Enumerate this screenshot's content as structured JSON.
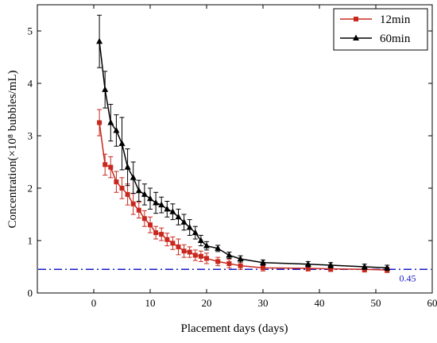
{
  "chart_data": {
    "type": "line",
    "xlabel": "Placement days (days)",
    "ylabel": "Concentration(×10⁸ bubbles/mL)",
    "xlim": [
      -10,
      60
    ],
    "ylim": [
      0,
      5.5
    ],
    "xticks": [
      "0",
      "10",
      "20",
      "30",
      "40",
      "50",
      "60"
    ],
    "yticks": [
      "0",
      "1",
      "2",
      "3",
      "4",
      "5"
    ],
    "legend_position": "top-right",
    "series": [
      {
        "name": "12min",
        "color": "#c8281e",
        "marker": "square",
        "x": [
          1,
          2,
          3,
          4,
          5,
          6,
          7,
          8,
          9,
          10,
          11,
          12,
          13,
          14,
          15,
          16,
          17,
          18,
          19,
          20,
          22,
          24,
          26,
          30,
          38,
          42,
          48,
          52
        ],
        "y": [
          3.25,
          2.45,
          2.4,
          2.12,
          2.0,
          1.88,
          1.7,
          1.58,
          1.42,
          1.3,
          1.15,
          1.12,
          1.02,
          0.95,
          0.88,
          0.8,
          0.78,
          0.72,
          0.7,
          0.66,
          0.6,
          0.56,
          0.52,
          0.48,
          0.47,
          0.46,
          0.45,
          0.44
        ],
        "err": [
          0.25,
          0.2,
          0.2,
          0.2,
          0.2,
          0.2,
          0.2,
          0.15,
          0.15,
          0.15,
          0.12,
          0.12,
          0.12,
          0.12,
          0.15,
          0.12,
          0.1,
          0.1,
          0.1,
          0.1,
          0.08,
          0.08,
          0.07,
          0.06,
          0.05,
          0.05,
          0.05,
          0.05
        ]
      },
      {
        "name": "60min",
        "color": "#000000",
        "marker": "triangle",
        "x": [
          1,
          2,
          3,
          4,
          5,
          6,
          7,
          8,
          9,
          10,
          11,
          12,
          13,
          14,
          15,
          16,
          17,
          18,
          19,
          20,
          22,
          24,
          26,
          30,
          38,
          42,
          48,
          52
        ],
        "y": [
          4.8,
          3.88,
          3.25,
          3.1,
          2.85,
          2.4,
          2.2,
          1.95,
          1.88,
          1.8,
          1.72,
          1.68,
          1.6,
          1.55,
          1.45,
          1.35,
          1.25,
          1.15,
          1.0,
          0.9,
          0.85,
          0.72,
          0.65,
          0.58,
          0.55,
          0.53,
          0.5,
          0.48
        ],
        "err": [
          0.5,
          0.35,
          0.35,
          0.3,
          0.5,
          0.35,
          0.3,
          0.2,
          0.2,
          0.2,
          0.2,
          0.15,
          0.15,
          0.15,
          0.15,
          0.15,
          0.15,
          0.12,
          0.1,
          0.08,
          0.06,
          0.06,
          0.06,
          0.05,
          0.05,
          0.05,
          0.05,
          0.05
        ]
      }
    ],
    "reference_line": {
      "y": 0.45,
      "label": "0.45",
      "color": "#1a1ac8",
      "style": "dash-dot"
    }
  }
}
